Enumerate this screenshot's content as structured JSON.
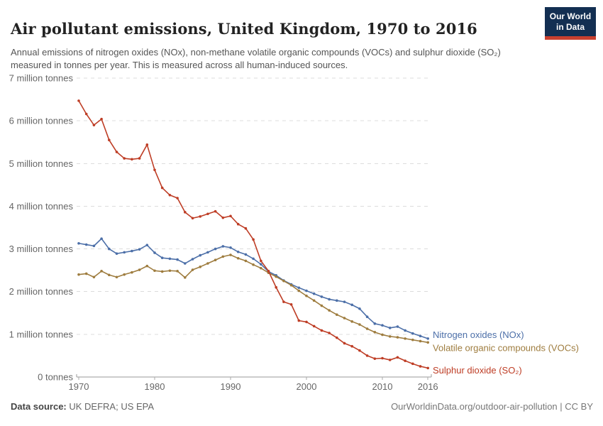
{
  "header": {
    "title": "Air pollutant emissions, United Kingdom, 1970 to 2016",
    "subtitle": "Annual emissions of nitrogen oxides (NOx), non-methane volatile organic compounds (VOCs) and sulphur dioxide (SO₂) measured in tonnes per year. This is measured across all human-induced sources.",
    "logo": {
      "line1": "Our World",
      "line2": "in Data",
      "bg_color": "#132F52",
      "bar_color": "#C9402F"
    }
  },
  "chart_data": {
    "type": "line",
    "title": "Air pollutant emissions, United Kingdom, 1970 to 2016",
    "xlabel": "",
    "ylabel": "tonnes per year",
    "xlim": [
      1970,
      2016
    ],
    "ylim": [
      0,
      7000000
    ],
    "grid": "horizontal dashed",
    "legend_position": "right end-of-line labels",
    "x_ticks": [
      1970,
      1980,
      1990,
      2000,
      2010,
      2016
    ],
    "y_ticks": [
      {
        "value": 0,
        "label": "0 tonnes"
      },
      {
        "value": 1,
        "label": "1 million tonnes"
      },
      {
        "value": 2,
        "label": "2 million tonnes"
      },
      {
        "value": 3,
        "label": "3 million tonnes"
      },
      {
        "value": 4,
        "label": "4 million tonnes"
      },
      {
        "value": 5,
        "label": "5 million tonnes"
      },
      {
        "value": 6,
        "label": "6 million tonnes"
      },
      {
        "value": 7,
        "label": "7 million tonnes"
      }
    ],
    "unit": "million tonnes",
    "x": [
      1970,
      1971,
      1972,
      1973,
      1974,
      1975,
      1976,
      1977,
      1978,
      1979,
      1980,
      1981,
      1982,
      1983,
      1984,
      1985,
      1986,
      1987,
      1988,
      1989,
      1990,
      1991,
      1992,
      1993,
      1994,
      1995,
      1996,
      1997,
      1998,
      1999,
      2000,
      2001,
      2002,
      2003,
      2004,
      2005,
      2006,
      2007,
      2008,
      2009,
      2010,
      2011,
      2012,
      2013,
      2014,
      2015,
      2016
    ],
    "series": [
      {
        "name": "Nitrogen oxides (NOx)",
        "color": "#4C6FA8",
        "values": [
          3.13,
          3.1,
          3.07,
          3.24,
          3.0,
          2.89,
          2.92,
          2.95,
          2.99,
          3.09,
          2.91,
          2.79,
          2.77,
          2.75,
          2.66,
          2.76,
          2.85,
          2.92,
          3.0,
          3.06,
          3.03,
          2.93,
          2.87,
          2.77,
          2.64,
          2.47,
          2.38,
          2.26,
          2.17,
          2.09,
          2.02,
          1.95,
          1.88,
          1.82,
          1.79,
          1.76,
          1.69,
          1.6,
          1.41,
          1.25,
          1.21,
          1.15,
          1.18,
          1.09,
          1.02,
          0.96,
          0.9
        ]
      },
      {
        "name": "Volatile organic compounds (VOCs)",
        "color": "#9E7C3E",
        "values": [
          2.4,
          2.42,
          2.34,
          2.48,
          2.39,
          2.34,
          2.4,
          2.45,
          2.51,
          2.6,
          2.49,
          2.47,
          2.49,
          2.48,
          2.33,
          2.51,
          2.58,
          2.66,
          2.74,
          2.82,
          2.86,
          2.78,
          2.72,
          2.63,
          2.55,
          2.44,
          2.35,
          2.25,
          2.15,
          2.02,
          1.9,
          1.79,
          1.67,
          1.56,
          1.46,
          1.38,
          1.3,
          1.23,
          1.13,
          1.05,
          0.99,
          0.95,
          0.93,
          0.9,
          0.87,
          0.84,
          0.81
        ]
      },
      {
        "name": "Sulphur dioxide (SO₂)",
        "color": "#BE3D25",
        "values": [
          6.47,
          6.16,
          5.9,
          6.04,
          5.55,
          5.27,
          5.12,
          5.1,
          5.12,
          5.44,
          4.85,
          4.43,
          4.26,
          4.19,
          3.86,
          3.72,
          3.76,
          3.82,
          3.88,
          3.73,
          3.77,
          3.58,
          3.48,
          3.22,
          2.72,
          2.48,
          2.1,
          1.76,
          1.7,
          1.32,
          1.29,
          1.19,
          1.09,
          1.03,
          0.92,
          0.79,
          0.72,
          0.62,
          0.5,
          0.43,
          0.44,
          0.4,
          0.46,
          0.38,
          0.31,
          0.25,
          0.21
        ]
      }
    ]
  },
  "footer": {
    "source_label": "Data source:",
    "source_value": " UK DEFRA; US EPA",
    "link": "OurWorldinData.org/outdoor-air-pollution | CC BY"
  }
}
